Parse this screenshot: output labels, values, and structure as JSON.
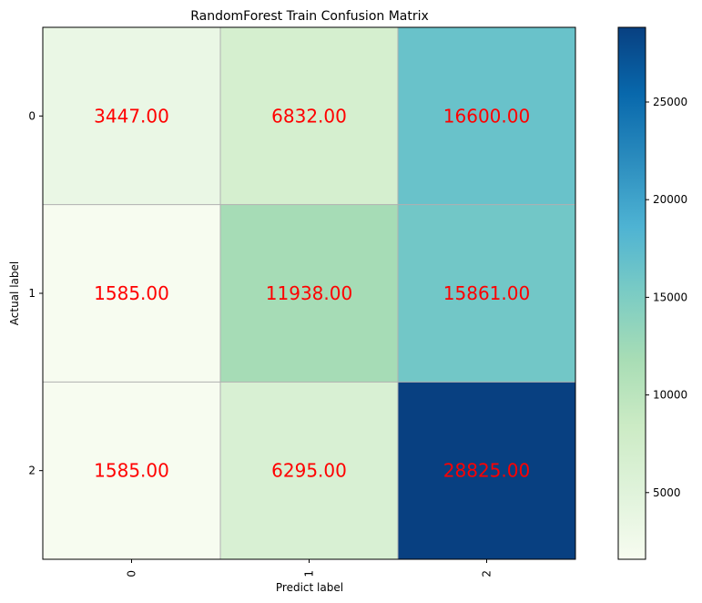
{
  "chart_data": {
    "type": "heatmap",
    "title": "RandomForest Train Confusion Matrix",
    "xlabel": "Predict label",
    "ylabel": "Actual label",
    "x_categories": [
      "0",
      "1",
      "2"
    ],
    "y_categories": [
      "0",
      "1",
      "2"
    ],
    "values": [
      [
        3447,
        6832,
        16600
      ],
      [
        1585,
        11938,
        15861
      ],
      [
        1585,
        6295,
        28825
      ]
    ],
    "value_labels": [
      [
        "3447.00",
        "6832.00",
        "16600.00"
      ],
      [
        "1585.00",
        "11938.00",
        "15861.00"
      ],
      [
        "1585.00",
        "6295.00",
        "28825.00"
      ]
    ],
    "colormap": "GnBu",
    "color_range": [
      1585,
      28825
    ],
    "colorbar_ticks": [
      "5000",
      "10000",
      "15000",
      "20000",
      "25000"
    ],
    "grid": true,
    "label_color": "#ff0000"
  }
}
